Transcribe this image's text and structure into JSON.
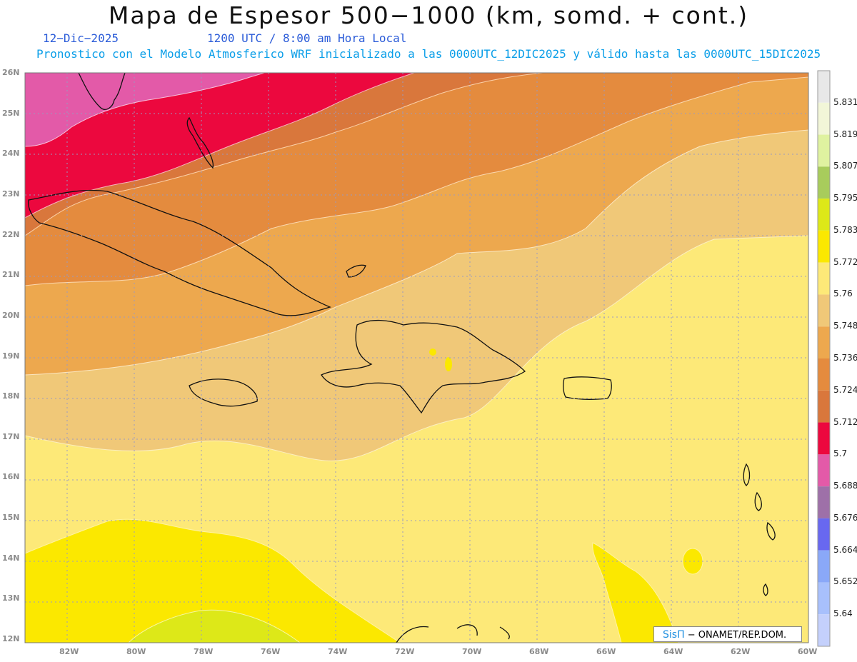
{
  "header": {
    "title": "Mapa de Espesor 500−1000 (km, somd. + cont.)",
    "date": "12−Dic−2025",
    "time": "1200 UTC / 8:00 am Hora Local",
    "model_info": "Pronostico con el Modelo Atmosferico WRF inicializado a las 0000UTC_12DIC2025 y válido hasta las  0000UTC_15DIC2025"
  },
  "map": {
    "lat_ticks": [
      "26N",
      "25N",
      "24N",
      "23N",
      "22N",
      "21N",
      "20N",
      "19N",
      "18N",
      "17N",
      "16N",
      "15N",
      "14N",
      "13N",
      "12N"
    ],
    "lon_ticks": [
      "82W",
      "80W",
      "78W",
      "76W",
      "74W",
      "72W",
      "70W",
      "68W",
      "66W",
      "64W",
      "62W",
      "60W"
    ],
    "lat_range": [
      12,
      26
    ],
    "lon_range": [
      -83.2,
      -60
    ],
    "grid": true
  },
  "colorbar": {
    "labels": [
      "5.831",
      "5.819",
      "5.807",
      "5.795",
      "5.783",
      "5.772",
      "5.76",
      "5.748",
      "5.736",
      "5.724",
      "5.712",
      "5.7",
      "5.688",
      "5.676",
      "5.664",
      "5.652",
      "5.64"
    ],
    "colors": [
      "#e8e8e8",
      "#f2f6d8",
      "#dff2a0",
      "#a8cc5c",
      "#dde818",
      "#fbe800",
      "#fde978",
      "#f0c878",
      "#eda84e",
      "#e48b3e",
      "#d9773c",
      "#ec083e",
      "#e35aa8",
      "#9e70a8",
      "#6868f0",
      "#8aa8f8",
      "#a8c0fc",
      "#c4d0fc"
    ]
  },
  "credit": {
    "logo": "SisΠ",
    "text": " − ONAMET/REP.DOM."
  }
}
